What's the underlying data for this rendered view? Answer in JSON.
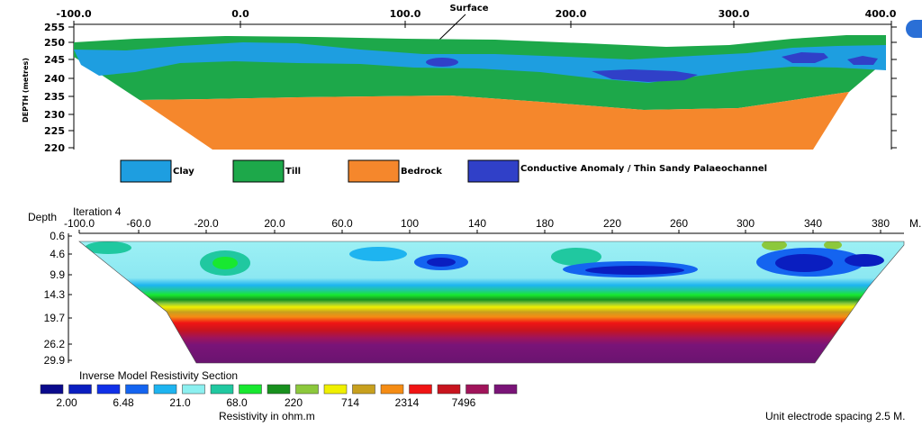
{
  "top_section": {
    "x_ticks": [
      "-100.0",
      "0.0",
      "100.0",
      "200.0",
      "300.0",
      "400.0"
    ],
    "surface_label": "Surface",
    "y_axis_label": "DEPTH (metres)",
    "y_ticks": [
      "255",
      "250",
      "245",
      "240",
      "235",
      "230",
      "225",
      "220"
    ],
    "legend": [
      {
        "label": "Clay",
        "color": "#1e9ee0"
      },
      {
        "label": "Till",
        "color": "#1da84a"
      },
      {
        "label": "Bedrock",
        "color": "#f5872c"
      },
      {
        "label": "Conductive Anomaly / Thin Sandy Palaeochannel",
        "color": "#3040c8"
      }
    ]
  },
  "bottom_section": {
    "depth_label": "Depth",
    "iteration_label": "Iteration 4",
    "x_ticks": [
      "-100.0",
      "-60.0",
      "-20.0",
      "20.0",
      "60.0",
      "100",
      "140",
      "180",
      "220",
      "260",
      "300",
      "340",
      "380"
    ],
    "x_unit": "M.",
    "y_ticks": [
      "0.6",
      "4.6",
      "9.9",
      "14.3",
      "19.7",
      "26.2",
      "29.9"
    ],
    "section_title": "Inverse Model Resistivity Section",
    "scale_colors": [
      "#0a0a8c",
      "#0a1ec0",
      "#1030e8",
      "#1464f0",
      "#1eb4f0",
      "#8cf0f0",
      "#20c8a0",
      "#18e830",
      "#18901e",
      "#8cc83c",
      "#f0f000",
      "#c8a01e",
      "#f58c14",
      "#f01414",
      "#c8141e",
      "#a0145a",
      "#7a1478"
    ],
    "scale_labels": [
      "2.00",
      "6.48",
      "21.0",
      "68.0",
      "220",
      "714",
      "2314",
      "7496"
    ],
    "scale_caption": "Resistivity in ohm.m",
    "spacing_note": "Unit electrode spacing 2.5 M."
  }
}
